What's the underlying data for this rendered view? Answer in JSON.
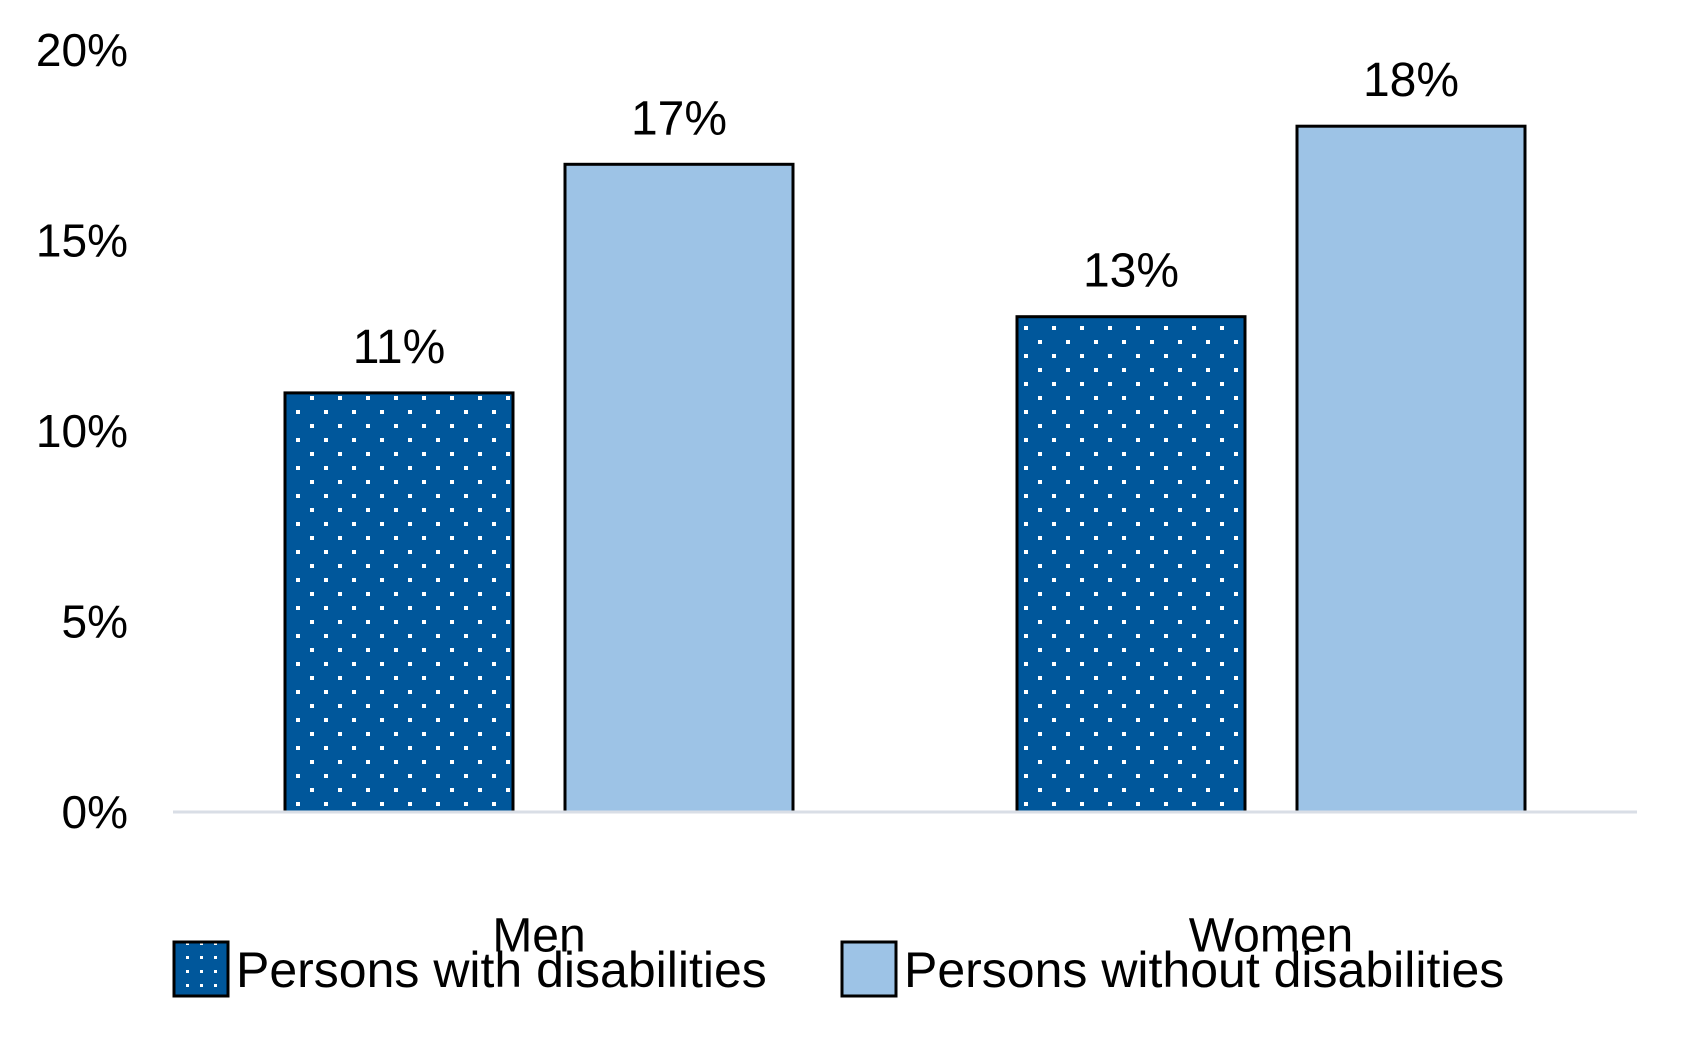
{
  "chart_data": {
    "type": "bar",
    "title": "",
    "xlabel": "",
    "ylabel": "",
    "categories": [
      "Men",
      "Women"
    ],
    "series": [
      {
        "name": "Persons with disabilities",
        "values": [
          11,
          13
        ],
        "value_labels": [
          "11%",
          "13%"
        ],
        "color": "#00579B",
        "pattern": "white-dots"
      },
      {
        "name": "Persons without disabilities",
        "values": [
          17,
          18
        ],
        "value_labels": [
          "17%",
          "18%"
        ],
        "color": "#9DC3E6",
        "pattern": "solid"
      }
    ],
    "ylim": [
      0,
      20
    ],
    "yticks": [
      0,
      5,
      10,
      15,
      20
    ],
    "ytick_labels": [
      "0%",
      "5%",
      "10%",
      "15%",
      "20%"
    ],
    "grid": false,
    "legend_position": "bottom",
    "bar_outline_color": "#000000",
    "axis_line_color": "#D9DEE6"
  }
}
